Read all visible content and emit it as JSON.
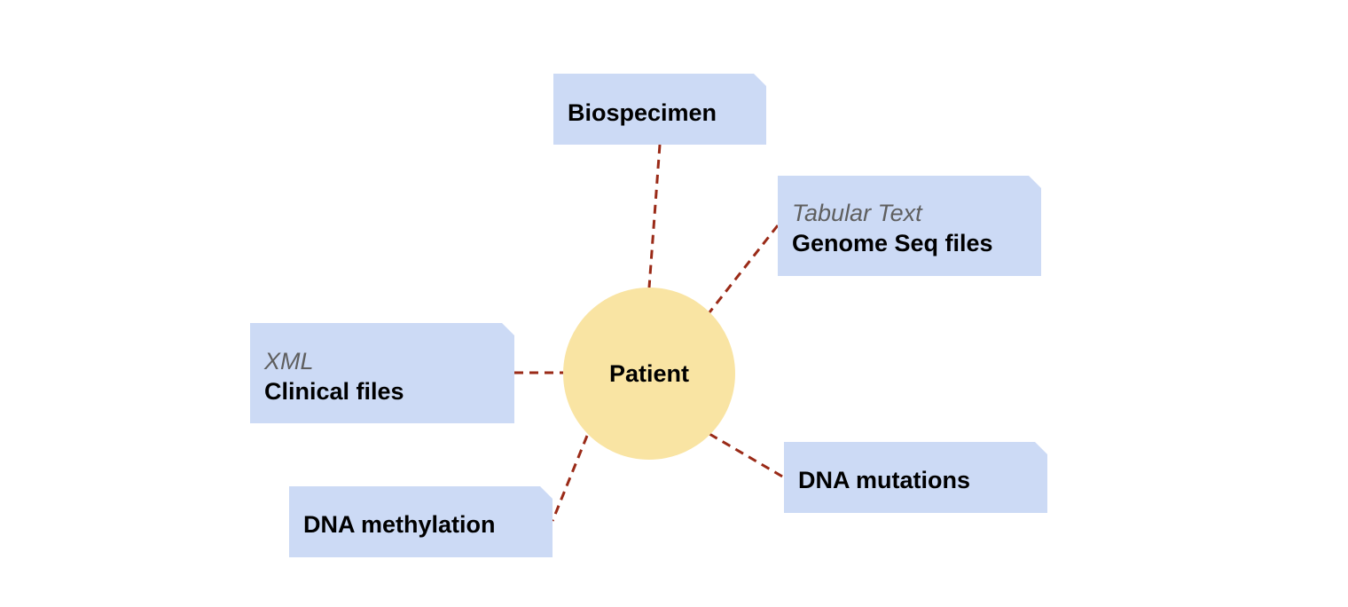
{
  "center": {
    "label": "Patient"
  },
  "nodes": {
    "biospecimen": {
      "title": "Biospecimen"
    },
    "genome_seq": {
      "type": "Tabular Text",
      "title": "Genome Seq files"
    },
    "clinical": {
      "type": "XML",
      "title": "Clinical files"
    },
    "dna_mutations": {
      "title": "DNA mutations"
    },
    "dna_methylation": {
      "title": "DNA methylation"
    }
  },
  "colors": {
    "node_fill": "#ccdaf5",
    "center_fill": "#f9e4a3",
    "connector": "#9a2a17",
    "type_text": "#5f5f5f"
  }
}
